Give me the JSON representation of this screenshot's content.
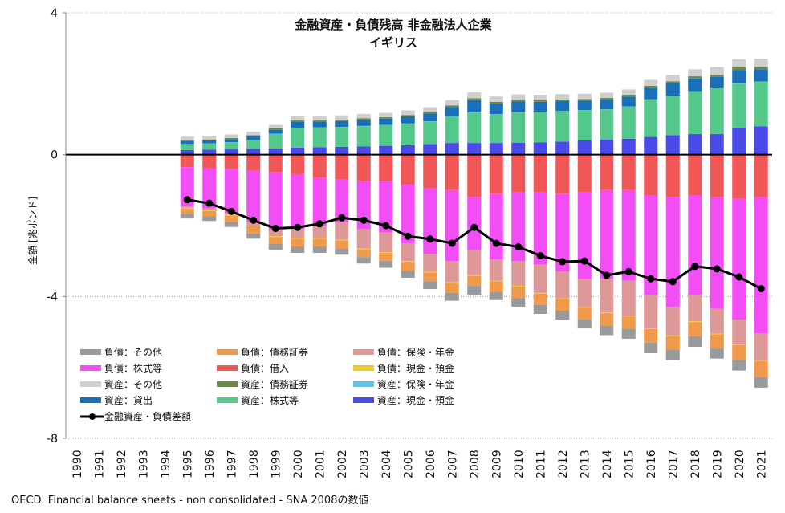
{
  "chart_data": {
    "type": "bar",
    "stacked": true,
    "title": "金融資産・負債残高 非金融法人企業",
    "subtitle": "イギリス",
    "ylabel": "金額 [兆ポンド]",
    "xlabel": "",
    "ylim": [
      -8,
      4
    ],
    "yticks": [
      "4",
      "0",
      "-4",
      "-8"
    ],
    "ytick_values": [
      4,
      0,
      -4,
      -8
    ],
    "categories": [
      "1990",
      "1991",
      "1992",
      "1993",
      "1994",
      "1995",
      "1996",
      "1997",
      "1998",
      "1999",
      "2000",
      "2001",
      "2002",
      "2003",
      "2004",
      "2005",
      "2006",
      "2007",
      "2008",
      "2009",
      "2010",
      "2011",
      "2012",
      "2013",
      "2014",
      "2015",
      "2016",
      "2017",
      "2018",
      "2019",
      "2020",
      "2021"
    ],
    "series": [
      {
        "name": "資産：現金・預金",
        "color": "#4a4ae8",
        "group": "asset",
        "values": [
          null,
          null,
          null,
          null,
          null,
          0.13,
          0.14,
          0.15,
          0.16,
          0.18,
          0.2,
          0.21,
          0.22,
          0.23,
          0.25,
          0.27,
          0.3,
          0.33,
          0.33,
          0.33,
          0.34,
          0.35,
          0.37,
          0.4,
          0.42,
          0.45,
          0.5,
          0.55,
          0.58,
          0.58,
          0.75,
          0.8
        ]
      },
      {
        "name": "資産：株式等",
        "color": "#54c78a",
        "group": "asset",
        "values": [
          null,
          null,
          null,
          null,
          null,
          0.16,
          0.17,
          0.19,
          0.25,
          0.4,
          0.55,
          0.55,
          0.55,
          0.57,
          0.58,
          0.6,
          0.63,
          0.75,
          0.85,
          0.8,
          0.85,
          0.85,
          0.85,
          0.85,
          0.85,
          0.9,
          1.05,
          1.1,
          1.2,
          1.3,
          1.25,
          1.25
        ]
      },
      {
        "name": "資産：保険・年金",
        "color": "#56c8f0",
        "group": "asset",
        "values": [
          null,
          null,
          null,
          null,
          null,
          0.01,
          0.01,
          0.01,
          0.01,
          0.01,
          0.01,
          0.01,
          0.01,
          0.01,
          0.01,
          0.01,
          0.01,
          0.01,
          0.01,
          0.01,
          0.01,
          0.01,
          0.01,
          0.01,
          0.01,
          0.01,
          0.01,
          0.01,
          0.01,
          0.01,
          0.01,
          0.01
        ]
      },
      {
        "name": "資産：貸出",
        "color": "#1a6fba",
        "group": "asset",
        "values": [
          null,
          null,
          null,
          null,
          null,
          0.08,
          0.08,
          0.09,
          0.1,
          0.12,
          0.17,
          0.16,
          0.17,
          0.18,
          0.18,
          0.2,
          0.22,
          0.25,
          0.35,
          0.3,
          0.3,
          0.28,
          0.28,
          0.26,
          0.27,
          0.28,
          0.33,
          0.35,
          0.36,
          0.3,
          0.38,
          0.35
        ]
      },
      {
        "name": "資産：債務証券",
        "color": "#6a8a48",
        "group": "asset",
        "values": [
          null,
          null,
          null,
          null,
          null,
          0.03,
          0.03,
          0.03,
          0.03,
          0.03,
          0.04,
          0.04,
          0.04,
          0.04,
          0.04,
          0.04,
          0.04,
          0.05,
          0.05,
          0.05,
          0.05,
          0.05,
          0.05,
          0.05,
          0.05,
          0.05,
          0.05,
          0.06,
          0.06,
          0.06,
          0.07,
          0.07
        ]
      },
      {
        "name": "資産：その他",
        "color": "#cfcfcf",
        "group": "asset",
        "values": [
          null,
          null,
          null,
          null,
          null,
          0.1,
          0.1,
          0.1,
          0.1,
          0.1,
          0.12,
          0.12,
          0.12,
          0.12,
          0.12,
          0.13,
          0.14,
          0.15,
          0.17,
          0.15,
          0.15,
          0.15,
          0.15,
          0.15,
          0.15,
          0.15,
          0.17,
          0.18,
          0.2,
          0.22,
          0.23,
          0.23
        ]
      },
      {
        "name": "負債：借入",
        "color": "#f25757",
        "group": "liability",
        "values": [
          null,
          null,
          null,
          null,
          null,
          -0.35,
          -0.37,
          -0.4,
          -0.45,
          -0.5,
          -0.55,
          -0.65,
          -0.7,
          -0.75,
          -0.75,
          -0.85,
          -0.95,
          -1.0,
          -1.2,
          -1.1,
          -1.05,
          -1.05,
          -1.1,
          -1.05,
          -1.0,
          -1.0,
          -1.15,
          -1.2,
          -1.15,
          -1.2,
          -1.25,
          -1.2
        ]
      },
      {
        "name": "負債：株式等",
        "color": "#f34ef5",
        "group": "liability",
        "values": [
          null,
          null,
          null,
          null,
          null,
          -1.1,
          -1.15,
          -1.25,
          -1.45,
          -1.6,
          -1.55,
          -1.35,
          -1.2,
          -1.35,
          -1.45,
          -1.65,
          -1.85,
          -2.0,
          -1.5,
          -1.85,
          -1.95,
          -2.05,
          -2.2,
          -2.45,
          -2.5,
          -2.55,
          -2.8,
          -3.1,
          -2.8,
          -3.15,
          -3.4,
          -3.85
        ]
      },
      {
        "name": "負債：保険・年金",
        "color": "#de9898",
        "group": "liability",
        "values": [
          null,
          null,
          null,
          null,
          null,
          -0.05,
          -0.05,
          -0.05,
          -0.1,
          -0.2,
          -0.25,
          -0.35,
          -0.5,
          -0.55,
          -0.55,
          -0.5,
          -0.5,
          -0.6,
          -0.7,
          -0.6,
          -0.7,
          -0.8,
          -0.75,
          -0.8,
          -0.95,
          -1.0,
          -0.95,
          -0.8,
          -0.75,
          -0.7,
          -0.7,
          -0.75
        ]
      },
      {
        "name": "負債：現金・預金",
        "color": "#f2c830",
        "group": "liability",
        "values": [
          null,
          null,
          null,
          null,
          null,
          -0.02,
          -0.02,
          -0.02,
          -0.02,
          -0.02,
          -0.02,
          -0.02,
          -0.02,
          -0.02,
          -0.02,
          -0.02,
          -0.02,
          -0.02,
          -0.02,
          -0.02,
          -0.02,
          -0.02,
          -0.02,
          -0.02,
          -0.02,
          -0.02,
          -0.02,
          -0.02,
          -0.02,
          -0.02,
          -0.02,
          -0.02
        ]
      },
      {
        "name": "負債：債務証券",
        "color": "#f0994a",
        "group": "liability",
        "values": [
          null,
          null,
          null,
          null,
          null,
          -0.15,
          -0.15,
          -0.18,
          -0.2,
          -0.2,
          -0.22,
          -0.22,
          -0.22,
          -0.22,
          -0.22,
          -0.25,
          -0.25,
          -0.28,
          -0.28,
          -0.3,
          -0.32,
          -0.32,
          -0.33,
          -0.33,
          -0.35,
          -0.35,
          -0.38,
          -0.38,
          -0.4,
          -0.4,
          -0.42,
          -0.45
        ]
      },
      {
        "name": "負債：その他",
        "color": "#9a9a9a",
        "group": "liability",
        "values": [
          null,
          null,
          null,
          null,
          null,
          -0.13,
          -0.13,
          -0.14,
          -0.15,
          -0.17,
          -0.18,
          -0.18,
          -0.18,
          -0.18,
          -0.2,
          -0.2,
          -0.22,
          -0.22,
          -0.25,
          -0.23,
          -0.25,
          -0.25,
          -0.25,
          -0.25,
          -0.27,
          -0.27,
          -0.3,
          -0.3,
          -0.3,
          -0.28,
          -0.3,
          -0.3
        ]
      }
    ],
    "line": {
      "name": "金融資産・負債差額",
      "color": "#000000",
      "values": [
        null,
        null,
        null,
        null,
        null,
        -1.27,
        -1.37,
        -1.6,
        -1.85,
        -2.08,
        -2.05,
        -1.95,
        -1.78,
        -1.85,
        -2.0,
        -2.3,
        -2.38,
        -2.5,
        -2.05,
        -2.5,
        -2.6,
        -2.85,
        -3.02,
        -3.0,
        -3.4,
        -3.3,
        -3.5,
        -3.58,
        -3.15,
        -3.22,
        -3.45,
        -3.78
      ]
    }
  },
  "legend": {
    "items": [
      {
        "label": "負債：その他",
        "color": "#9a9a9a"
      },
      {
        "label": "負債：債務証券",
        "color": "#f0994a"
      },
      {
        "label": "負債：保険・年金",
        "color": "#de9898"
      },
      {
        "label": "負債：株式等",
        "color": "#f34ef5"
      },
      {
        "label": "負債：借入",
        "color": "#f25757"
      },
      {
        "label": "負債：現金・預金",
        "color": "#f2c830"
      },
      {
        "label": "資産：その他",
        "color": "#cfcfcf"
      },
      {
        "label": "資産：債務証券",
        "color": "#6a8a48"
      },
      {
        "label": "資産：保険・年金",
        "color": "#56c8f0"
      },
      {
        "label": "資産：貸出",
        "color": "#1a6fba"
      },
      {
        "label": "資産：株式等",
        "color": "#54c78a"
      },
      {
        "label": "資産：現金・預金",
        "color": "#4a4ae8"
      }
    ],
    "line_label": "金融資産・負債差額"
  },
  "source": "OECD. Financial balance sheets - non consolidated - SNA 2008の数値"
}
